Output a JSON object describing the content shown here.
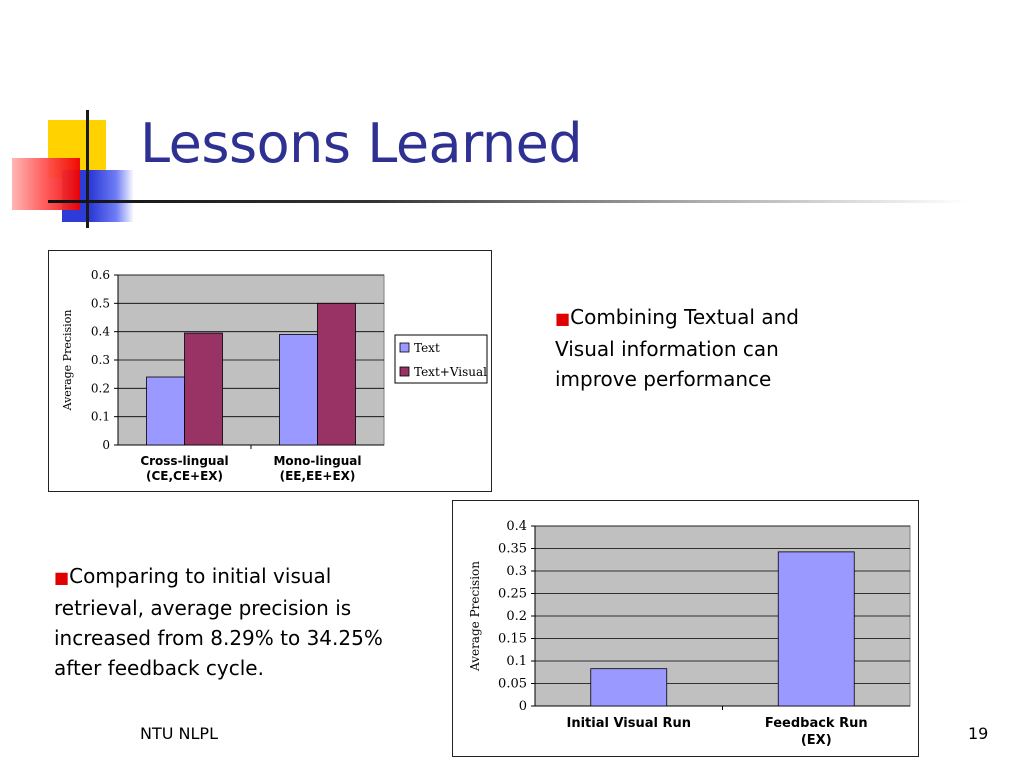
{
  "slide": {
    "title": "Lessons Learned",
    "footer_left": "NTU NLPL",
    "page_number": "19"
  },
  "bullets": [
    {
      "mark": "■",
      "text": "Combining Textual and Visual information can improve performance"
    },
    {
      "mark": "■",
      "text": "Comparing to initial visual retrieval, average precision is increased from 8.29% to 34.25% after feedback cycle."
    }
  ],
  "colors": {
    "title": "#2e3192",
    "bullet_mark": "#e00000",
    "plot_bg": "#c0c0c0",
    "series_text": "#9999ff",
    "series_text_visual": "#993366"
  },
  "chart_data": [
    {
      "type": "bar",
      "ylabel": "Average Precision",
      "ylim": [
        0,
        0.6
      ],
      "yticks": [
        "0",
        "0.1",
        "0.2",
        "0.3",
        "0.4",
        "0.5",
        "0.6"
      ],
      "categories": [
        {
          "line1": "Cross-lingual",
          "line2": "(CE,CE+EX)"
        },
        {
          "line1": "Mono-lingual",
          "line2": "(EE,EE+EX)"
        }
      ],
      "series": [
        {
          "name": "Text",
          "values": [
            0.24,
            0.39
          ]
        },
        {
          "name": "Text+Visual",
          "values": [
            0.395,
            0.5
          ]
        }
      ],
      "legend": "right",
      "grid": true
    },
    {
      "type": "bar",
      "ylabel": "Average Precision",
      "ylim": [
        0,
        0.4
      ],
      "yticks": [
        "0",
        "0.05",
        "0.1",
        "0.15",
        "0.2",
        "0.25",
        "0.3",
        "0.35",
        "0.4"
      ],
      "categories": [
        {
          "line1": "Initial Visual Run",
          "line2": ""
        },
        {
          "line1": "Feedback Run",
          "line2": "(EX)"
        }
      ],
      "series": [
        {
          "values": [
            0.0829,
            0.3425
          ]
        }
      ],
      "grid": true
    }
  ]
}
